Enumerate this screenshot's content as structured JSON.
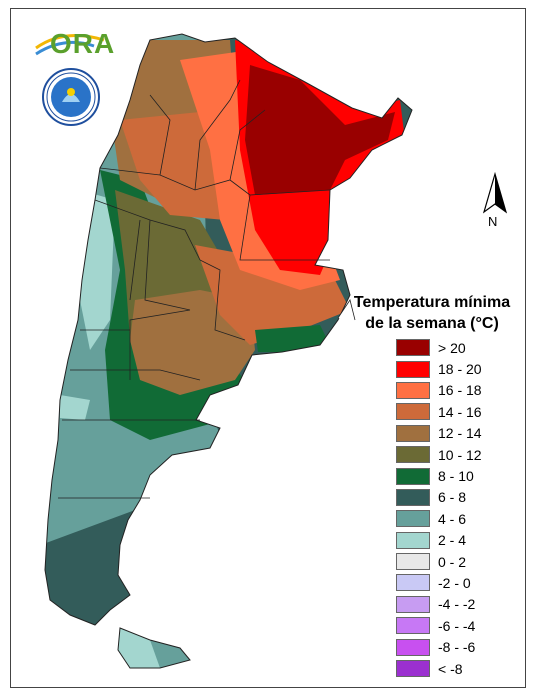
{
  "logo": {
    "text": "ORA",
    "icon": "sun-arc-logo-icon",
    "seal_icon": "smn-seal-icon"
  },
  "north_arrow": {
    "label": "N",
    "icon": "north-arrow-icon"
  },
  "legend": {
    "title_line1": "Temperatura mínima",
    "title_line2": "de la semana (°C)",
    "items": [
      {
        "label": "> 20",
        "color": "#990000"
      },
      {
        "label": "18 - 20",
        "color": "#ff0000"
      },
      {
        "label": "16 - 18",
        "color": "#ff7043"
      },
      {
        "label": "14 - 16",
        "color": "#cd6a3a"
      },
      {
        "label": "12 - 14",
        "color": "#a0703f"
      },
      {
        "label": "10 - 12",
        "color": "#6b6a35"
      },
      {
        "label": "8 - 10",
        "color": "#116b36"
      },
      {
        "label": "6 - 8",
        "color": "#335c5a"
      },
      {
        "label": "4 - 6",
        "color": "#66a09b"
      },
      {
        "label": "2 - 4",
        "color": "#a3d6cf"
      },
      {
        "label": "0 - 2",
        "color": "#e8e8e8"
      },
      {
        "label": "-2 - 0",
        "color": "#c9c9f5"
      },
      {
        "label": "-4 - -2",
        "color": "#c79cf2"
      },
      {
        "label": "-6 - -4",
        "color": "#c778f5"
      },
      {
        "label": "-8 - -6",
        "color": "#c850f0"
      },
      {
        "label": "< -8",
        "color": "#9b30d0"
      }
    ]
  }
}
